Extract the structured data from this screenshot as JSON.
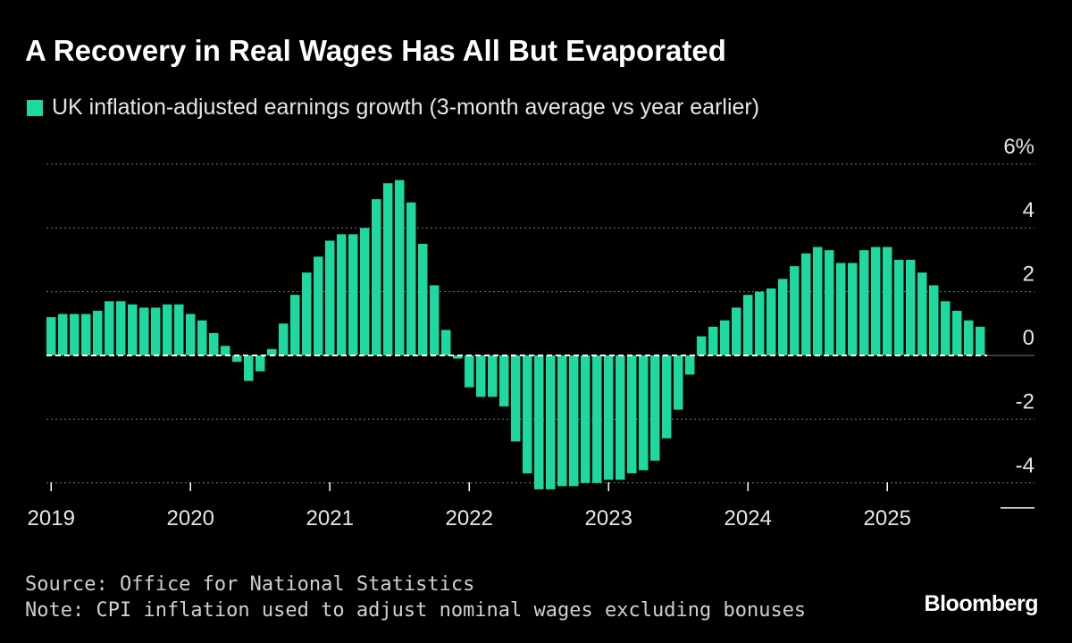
{
  "colors": {
    "background": "#000000",
    "bar": "#1ed8a0",
    "grid": "#7a7a7a",
    "text": "#ffffff",
    "axis_text": "#e6e6e6",
    "footer_text": "#d0d0d0"
  },
  "legend_icon": "square-swatch",
  "chart_data": {
    "type": "bar",
    "title": "A Recovery in Real Wages Has All But Evaporated",
    "series": [
      {
        "name": "UK inflation-adjusted earnings growth (3-month average vs year earlier)",
        "start": "2019-01",
        "values": [
          1.2,
          1.3,
          1.3,
          1.3,
          1.4,
          1.7,
          1.7,
          1.6,
          1.5,
          1.5,
          1.6,
          1.6,
          1.3,
          1.1,
          0.7,
          0.3,
          -0.2,
          -0.8,
          -0.5,
          0.2,
          1.0,
          1.9,
          2.6,
          3.1,
          3.6,
          3.8,
          3.8,
          4.0,
          4.9,
          5.4,
          5.5,
          4.8,
          3.5,
          2.2,
          0.8,
          -0.1,
          -1.0,
          -1.3,
          -1.3,
          -1.6,
          -2.7,
          -3.7,
          -4.2,
          -4.2,
          -4.1,
          -4.1,
          -4.0,
          -4.0,
          -3.9,
          -3.9,
          -3.7,
          -3.6,
          -3.3,
          -2.6,
          -1.7,
          -0.6,
          0.6,
          0.9,
          1.1,
          1.5,
          1.9,
          2.0,
          2.1,
          2.4,
          2.8,
          3.2,
          3.4,
          3.3,
          2.9,
          2.9,
          3.3,
          3.4,
          3.4,
          3.0,
          3.0,
          2.6,
          2.2,
          1.7,
          1.4,
          1.1,
          0.9
        ]
      }
    ],
    "x_tick_labels": [
      "2019",
      "2020",
      "2021",
      "2022",
      "2023",
      "2024",
      "2025"
    ],
    "y_tick_labels": [
      "6%",
      "4",
      "2",
      "0",
      "-2",
      "-4"
    ],
    "y_ticks": [
      6,
      4,
      2,
      0,
      -2,
      -4
    ],
    "ylim": [
      -4,
      6
    ],
    "xlabel": "",
    "ylabel": "",
    "grid": true,
    "legend_position": "top-left"
  },
  "footer": {
    "source": "Source: Office for National Statistics",
    "note": "Note: CPI inflation used to adjust nominal wages excluding bonuses"
  },
  "brand": "Bloomberg"
}
